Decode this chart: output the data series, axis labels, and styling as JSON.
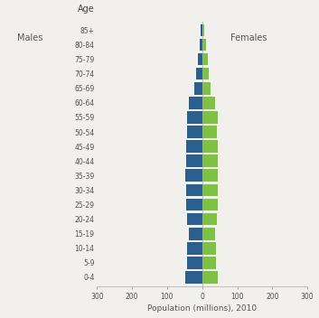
{
  "age_groups": [
    "0-4",
    "5-9",
    "10-14",
    "15-19",
    "20-24",
    "25-29",
    "30-34",
    "35-39",
    "40-44",
    "45-49",
    "50-54",
    "55-59",
    "60-64",
    "65-69",
    "70-74",
    "75-79",
    "80-84",
    "85+"
  ],
  "males": [
    47,
    42,
    42,
    38,
    43,
    46,
    46,
    47,
    46,
    46,
    44,
    44,
    37,
    22,
    17,
    12,
    7,
    4
  ],
  "females": [
    44,
    40,
    40,
    36,
    41,
    44,
    44,
    45,
    44,
    44,
    43,
    44,
    38,
    24,
    20,
    15,
    10,
    7
  ],
  "male_color": "#2b5f8e",
  "female_color": "#7dc243",
  "title_age": "Age",
  "label_males": "Males",
  "label_females": "Females",
  "xlabel": "Population (millions), 2010",
  "xlim": [
    -300,
    300
  ],
  "xticks": [
    -300,
    -200,
    -100,
    0,
    100,
    200,
    300
  ],
  "xticklabels": [
    "300",
    "200",
    "100",
    "0",
    "100",
    "200",
    "300"
  ],
  "bg_color": "#f2f0ed",
  "bar_height": 0.85
}
